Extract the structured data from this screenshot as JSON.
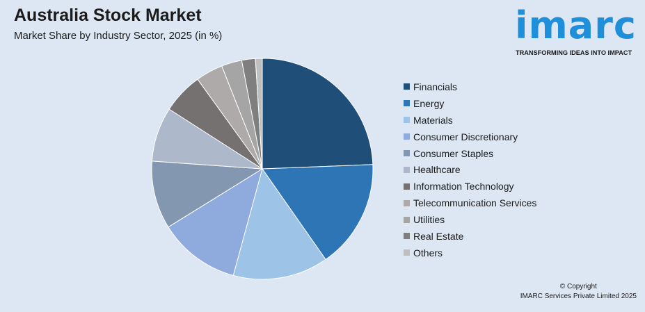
{
  "header": {
    "title": "Australia Stock Market",
    "subtitle": "Market Share by Industry Sector, 2025 (in %)"
  },
  "logo": {
    "wordmark": "imarc",
    "tagline": "TRANSFORMING IDEAS INTO IMPACT"
  },
  "footer": {
    "copyright": "© Copyright",
    "company": "IMARC Services Private Limited 2025"
  },
  "chart_data": {
    "type": "pie",
    "title": "Australia Stock Market",
    "subtitle": "Market Share by Industry Sector, 2025 (in %)",
    "legend_position": "right",
    "categories": [
      "Financials",
      "Energy",
      "Materials",
      "Consumer Discretionary",
      "Consumer Staples",
      "Healthcare",
      "Information Technology",
      "Telecommunication Services",
      "Utilities",
      "Real Estate",
      "Others"
    ],
    "values": [
      24.5,
      16.0,
      14.0,
      12.0,
      10.0,
      8.0,
      6.0,
      4.0,
      3.0,
      2.0,
      1.0
    ],
    "colors": [
      "#1f4e79",
      "#2e75b6",
      "#9dc3e6",
      "#8faadc",
      "#8497b0",
      "#adb9ca",
      "#767171",
      "#aeaaaa",
      "#a5a5a5",
      "#7f7f7f",
      "#bfbfbf"
    ]
  }
}
